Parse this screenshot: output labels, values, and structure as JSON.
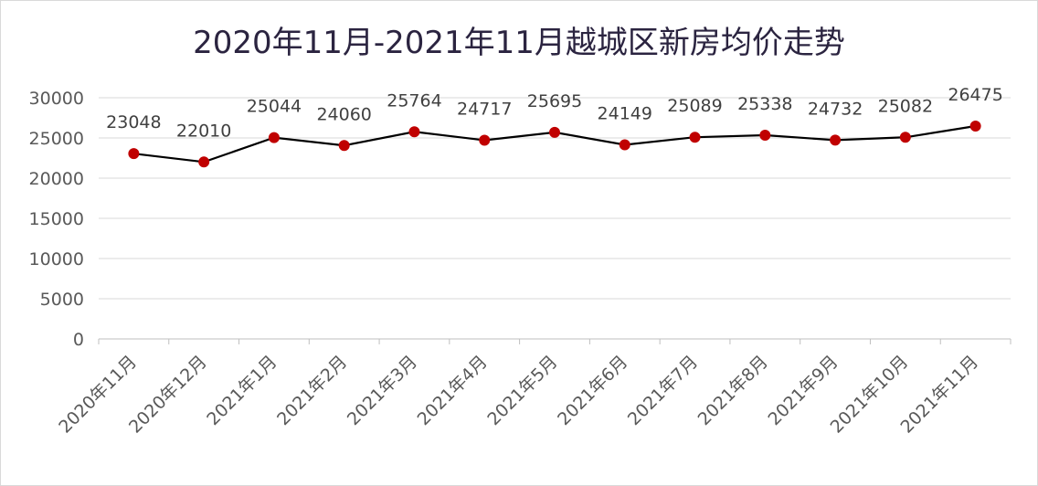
{
  "chart_data": {
    "type": "line",
    "title": "2020年11月-2021年11月越城区新房均价走势",
    "categories": [
      "2020年11月",
      "2020年12月",
      "2021年1月",
      "2021年2月",
      "2021年3月",
      "2021年4月",
      "2021年5月",
      "2021年6月",
      "2021年7月",
      "2021年8月",
      "2021年9月",
      "2021年10月",
      "2021年11月"
    ],
    "values": [
      23048,
      22010,
      25044,
      24060,
      25764,
      24717,
      25695,
      24149,
      25089,
      25338,
      24732,
      25082,
      26475
    ],
    "ylim": [
      0,
      30000
    ],
    "yticks": [
      0,
      5000,
      10000,
      15000,
      20000,
      25000,
      30000
    ],
    "grid": true,
    "legend": "none",
    "colors": {
      "line": "#000000",
      "marker": "#c00000",
      "title": "#2b2440",
      "grid": "#d9d9d9"
    }
  }
}
